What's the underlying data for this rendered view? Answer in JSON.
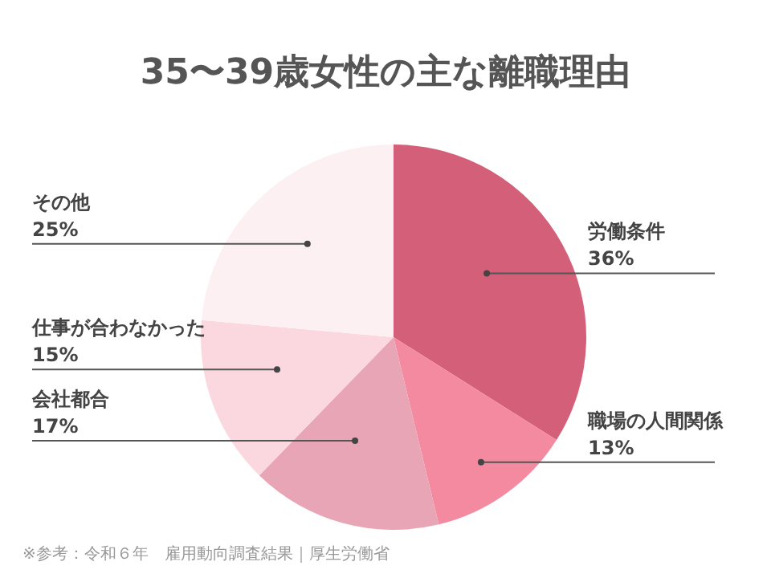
{
  "chart_data": {
    "type": "pie",
    "title": "35〜39歳女性の主な離職理由",
    "categories": [
      "労働条件",
      "職場の人間関係",
      "会社都合",
      "仕事が合わなかった",
      "その他"
    ],
    "values": [
      36,
      13,
      17,
      15,
      25
    ],
    "value_labels": [
      "36%",
      "13%",
      "17%",
      "15%",
      "25%"
    ],
    "colors": [
      "#d45f78",
      "#f48aa0",
      "#e8a5b5",
      "#fbd7e0",
      "#fdf0f3"
    ],
    "annotations": [
      "※参考：令和６年　雇用動向調査結果｜厚生労働省"
    ]
  }
}
